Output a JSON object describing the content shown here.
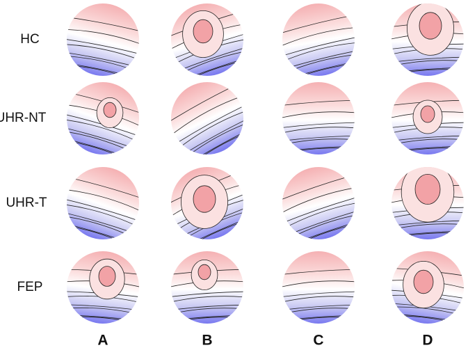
{
  "rows": [
    "HC",
    "UHR-NT",
    "UHR-T",
    "FEP"
  ],
  "columns": [
    "A",
    "B",
    "C",
    "D"
  ]
}
